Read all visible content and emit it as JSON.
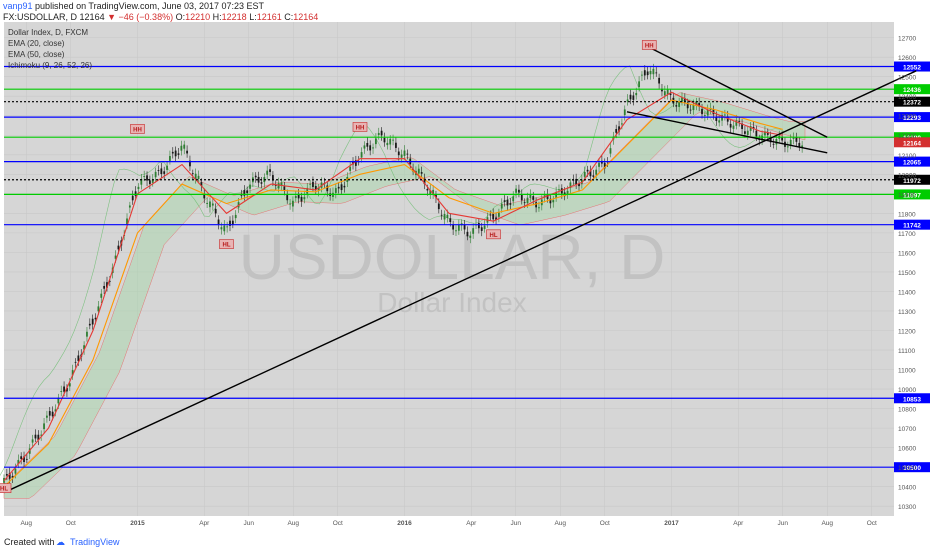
{
  "header": {
    "user": "vanp91",
    "published": "published on TradingView.com, June 03, 2017 07:23 EST",
    "symbol_line": "FX:USDOLLAR, D",
    "last": "12164",
    "change": "−46 (−0.38%)",
    "open_label": "O:",
    "open": "12210",
    "high_label": "H:",
    "high": "12218",
    "low_label": "L:",
    "low": "12161",
    "close_label": "C:",
    "close": "12164"
  },
  "legend": {
    "line1": "Dollar Index, D, FXCM",
    "line2": "EMA (20, close)",
    "line3": "EMA (50, close)",
    "line4": "Ichimoku (9, 26, 52, 26)"
  },
  "watermark": {
    "symbol": "USDOLLAR, D",
    "name": "Dollar Index"
  },
  "footer": {
    "created_with": "Created with",
    "brand": "TradingView"
  },
  "colors": {
    "background": "#d6d6d6",
    "blue_level": "#0000ff",
    "green_level": "#00cc00",
    "black_dotted": "#000000",
    "ema20": "#e53935",
    "ema50": "#ff9800",
    "price_label_last": "#d32f2f"
  },
  "chart_data": {
    "type": "line",
    "title": "Dollar Index, D, FXCM",
    "ylim": [
      10250,
      12780
    ],
    "y_ticks": [
      10300,
      10400,
      10500,
      10600,
      10700,
      10800,
      10900,
      11000,
      11100,
      11200,
      11300,
      11400,
      11500,
      11600,
      11700,
      11800,
      11900,
      12000,
      12100,
      12200,
      12300,
      12400,
      12500,
      12600,
      12700
    ],
    "x_ticks": [
      "Aug",
      "Oct",
      "2015",
      "Apr",
      "Jun",
      "Aug",
      "Oct",
      "2016",
      "Apr",
      "Jun",
      "Aug",
      "Oct",
      "2017",
      "Apr",
      "Jun",
      "Aug",
      "Oct"
    ],
    "horizontal_levels": [
      {
        "value": 12552,
        "label": "12552",
        "style": "blue"
      },
      {
        "value": 12436,
        "label": "12436",
        "style": "green"
      },
      {
        "value": 12372,
        "label": "12372",
        "style": "black-dotted"
      },
      {
        "value": 12293,
        "label": "12293",
        "style": "blue"
      },
      {
        "value": 12190,
        "label": "12190",
        "style": "green"
      },
      {
        "value": 12065,
        "label": "12065",
        "style": "blue"
      },
      {
        "value": 11972,
        "label": "11972",
        "style": "black-dotted"
      },
      {
        "value": 11897,
        "label": "11897",
        "style": "green"
      },
      {
        "value": 11742,
        "label": "11742",
        "style": "blue"
      },
      {
        "value": 10853,
        "label": "10853",
        "style": "blue"
      },
      {
        "value": 10500,
        "label": "10500",
        "style": "blue"
      }
    ],
    "last_price": {
      "value": 12164,
      "label": "12164"
    },
    "swing_labels": [
      {
        "text": "HL",
        "x": "Jul 2014",
        "y": 10390
      },
      {
        "text": "HH",
        "x": "Jan 2015",
        "y": 12230
      },
      {
        "text": "HL",
        "x": "May 2015",
        "y": 11640
      },
      {
        "text": "HH",
        "x": "Nov 2015",
        "y": 12240
      },
      {
        "text": "HL",
        "x": "May 2016",
        "y": 11690
      },
      {
        "text": "HH",
        "x": "Dec 2016",
        "y": 12660
      }
    ],
    "series": [
      {
        "name": "Dollar Index",
        "x": [
          "Jul 2014",
          "Aug 2014",
          "Sep 2014",
          "Oct 2014",
          "Nov 2014",
          "Dec 2014",
          "Jan 2015",
          "Feb 2015",
          "Mar 2015",
          "Apr 2015",
          "May 2015",
          "Jun 2015",
          "Jul 2015",
          "Aug 2015",
          "Sep 2015",
          "Oct 2015",
          "Nov 2015",
          "Dec 2015",
          "Jan 2016",
          "Feb 2016",
          "Mar 2016",
          "Apr 2016",
          "May 2016",
          "Jun 2016",
          "Jul 2016",
          "Aug 2016",
          "Sep 2016",
          "Oct 2016",
          "Nov 2016",
          "Dec 2016",
          "Jan 2017",
          "Feb 2017",
          "Mar 2017",
          "Apr 2017",
          "May 2017",
          "Jun 2017"
        ],
        "values": [
          10420,
          10560,
          10750,
          10950,
          11250,
          11550,
          11950,
          12000,
          12150,
          11900,
          11700,
          11950,
          12000,
          11850,
          11950,
          11900,
          12100,
          12200,
          12100,
          11950,
          11750,
          11700,
          11780,
          11900,
          11850,
          11900,
          11980,
          12050,
          12350,
          12550,
          12380,
          12350,
          12300,
          12250,
          12200,
          12164
        ]
      },
      {
        "name": "EMA (20, close)",
        "x": [
          "Jul 2014",
          "Sep 2014",
          "Nov 2014",
          "Jan 2015",
          "Mar 2015",
          "May 2015",
          "Jul 2015",
          "Sep 2015",
          "Nov 2015",
          "Jan 2016",
          "Mar 2016",
          "May 2016",
          "Jul 2016",
          "Sep 2016",
          "Nov 2016",
          "Jan 2017",
          "Mar 2017",
          "May 2017",
          "Jun 2017"
        ],
        "values": [
          10430,
          10700,
          11200,
          11900,
          12050,
          11800,
          11950,
          11920,
          12080,
          12080,
          11800,
          11760,
          11870,
          11960,
          12280,
          12420,
          12310,
          12220,
          12200
        ]
      },
      {
        "name": "EMA (50, close)",
        "x": [
          "Jul 2014",
          "Sep 2014",
          "Nov 2014",
          "Jan 2015",
          "Mar 2015",
          "May 2015",
          "Jul 2015",
          "Sep 2015",
          "Nov 2015",
          "Jan 2016",
          "Mar 2016",
          "May 2016",
          "Jul 2016",
          "Sep 2016",
          "Nov 2016",
          "Jan 2017",
          "Mar 2017",
          "May 2017",
          "Jun 2017"
        ],
        "values": [
          10400,
          10620,
          11050,
          11700,
          11950,
          11850,
          11920,
          11910,
          12000,
          12050,
          11880,
          11800,
          11850,
          11920,
          12150,
          12380,
          12330,
          12260,
          12230
        ]
      }
    ],
    "trendlines": [
      {
        "from": {
          "x": "Jul 2014",
          "y": 10370
        },
        "to": {
          "x": "Dec 2017",
          "y": 12530
        },
        "label": ""
      },
      {
        "from": {
          "x": "Dec 2016",
          "y": 12650
        },
        "to": {
          "x": "Aug 2017",
          "y": 12190
        },
        "label": ""
      },
      {
        "from": {
          "x": "Nov 2016",
          "y": 12320
        },
        "to": {
          "x": "Aug 2017",
          "y": 12110
        },
        "label": ""
      }
    ]
  }
}
